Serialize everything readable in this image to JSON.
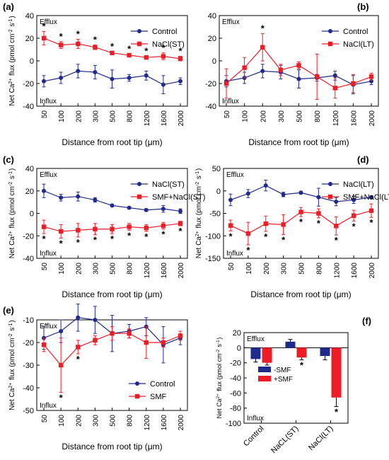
{
  "chart_data": [
    {
      "panel": "(a)",
      "type": "line",
      "x_categories": [
        "50",
        "100",
        "200",
        "300",
        "500",
        "800",
        "1200",
        "1600",
        "2000"
      ],
      "xlabel": "Distance from root tip  (μm)",
      "ylabel": "Net Ca2+ flux (pmol cm-2 s-1)",
      "ylim": [
        -40,
        40
      ],
      "yticks": [
        -40,
        -20,
        0,
        20,
        40
      ],
      "grid": false,
      "legend": "top-right",
      "annotations": {
        "top": "Efflux",
        "bottom": "Influx"
      },
      "series": [
        {
          "name": "Control",
          "color": "#1f2a8f",
          "marker": "circle",
          "values": [
            -18,
            -15,
            -9,
            -10,
            -16,
            -15,
            -13,
            -21,
            -18
          ],
          "errors": [
            5,
            5,
            6,
            6,
            8,
            3,
            4,
            8,
            3
          ]
        },
        {
          "name": "NaCl(ST)",
          "color": "#ee1c25",
          "marker": "square",
          "values": [
            20,
            14,
            15,
            12,
            7,
            5,
            3,
            4,
            2
          ],
          "errors": [
            6,
            3,
            4,
            2,
            1,
            1,
            1,
            3,
            2
          ]
        }
      ],
      "significance": [
        "*",
        "*",
        "*",
        "*",
        "*",
        "*",
        "*",
        "*",
        "*"
      ]
    },
    {
      "panel": "(b)",
      "type": "line",
      "x_categories": [
        "50",
        "100",
        "200",
        "300",
        "500",
        "800",
        "1200",
        "1600",
        "2000"
      ],
      "xlabel": "Distance from root tip  (μm)",
      "ylabel": "",
      "ylim": [
        -40,
        40
      ],
      "yticks": [
        -40,
        -20,
        0,
        20,
        40
      ],
      "grid": false,
      "legend": "top-right",
      "annotations": {
        "top": "Efflux",
        "bottom": "Influx"
      },
      "series": [
        {
          "name": "Control",
          "color": "#1f2a8f",
          "marker": "circle",
          "values": [
            -18,
            -15,
            -9,
            -10,
            -16,
            -15,
            -13,
            -21,
            -18
          ],
          "errors": [
            5,
            5,
            6,
            6,
            8,
            3,
            4,
            8,
            3
          ]
        },
        {
          "name": "NaCl(LT)",
          "color": "#ee1c25",
          "marker": "square",
          "values": [
            -20,
            -6,
            12,
            -8,
            -4,
            -14,
            -24,
            -20,
            -14
          ],
          "errors": [
            13,
            9,
            12,
            5,
            3,
            20,
            9,
            8,
            3
          ]
        }
      ],
      "significance": [
        "",
        "",
        "*",
        "",
        "",
        "",
        "",
        "",
        ""
      ]
    },
    {
      "panel": "(c)",
      "type": "line",
      "x_categories": [
        "50",
        "100",
        "200",
        "300",
        "500",
        "800",
        "1200",
        "1600",
        "2000"
      ],
      "xlabel": "Distance from root tip  (μm)",
      "ylabel": "Net Ca2+ flux (pmol cm-2 s-1)",
      "ylim": [
        -40,
        40
      ],
      "yticks": [
        -40,
        -20,
        0,
        20,
        40
      ],
      "grid": false,
      "legend": "top-right",
      "annotations": {
        "top": "Efflux",
        "bottom": "Influx"
      },
      "series": [
        {
          "name": "NaCl(ST)",
          "color": "#1f2a8f",
          "marker": "circle",
          "values": [
            20,
            14,
            15,
            12,
            7,
            5,
            3,
            4,
            2
          ],
          "errors": [
            6,
            3,
            4,
            2,
            1,
            1,
            1,
            3,
            2
          ]
        },
        {
          "name": "SMF+NaCl(ST)",
          "color": "#ee1c25",
          "marker": "square",
          "values": [
            -12,
            -16,
            -15,
            -14,
            -14,
            -12,
            -13,
            -11,
            -9
          ],
          "errors": [
            6,
            6,
            6,
            5,
            4,
            3,
            3,
            3,
            2
          ]
        }
      ],
      "significance": [
        "*",
        "*",
        "*",
        "*",
        "*",
        "*",
        "*",
        "*",
        "*"
      ]
    },
    {
      "panel": "(d)",
      "type": "line",
      "x_categories": [
        "50",
        "100",
        "200",
        "300",
        "500",
        "800",
        "1200",
        "1600",
        "2000"
      ],
      "xlabel": "Distance from root tip  (μm)",
      "ylabel": "Net Ca2+ flux (pmol cm-2 s-1)",
      "ylim": [
        -150,
        50
      ],
      "yticks": [
        -150,
        -100,
        -50,
        0,
        50
      ],
      "grid": false,
      "legend": "top-right",
      "annotations": {
        "top": "Efflux",
        "bottom": "Influx"
      },
      "series": [
        {
          "name": "NaCl(LT)",
          "color": "#1f2a8f",
          "marker": "circle",
          "values": [
            -20,
            -6,
            12,
            -8,
            -4,
            -14,
            -24,
            -20,
            -14
          ],
          "errors": [
            13,
            9,
            12,
            5,
            3,
            20,
            9,
            8,
            3
          ]
        },
        {
          "name": "SMF+NaCl(LT)",
          "color": "#ee1c25",
          "marker": "square",
          "values": [
            -77,
            -95,
            -73,
            -75,
            -47,
            -50,
            -78,
            -55,
            -44
          ],
          "errors": [
            12,
            25,
            17,
            22,
            10,
            10,
            20,
            12,
            15
          ]
        }
      ],
      "significance": [
        "*",
        "*",
        "*",
        "*",
        "*",
        "*",
        "*",
        "*",
        "*"
      ]
    },
    {
      "panel": "(e)",
      "type": "line",
      "x_categories": [
        "50",
        "100",
        "200",
        "300",
        "500",
        "800",
        "1200",
        "1600",
        "2000"
      ],
      "xlabel": "Distance from root tip  (μm)",
      "ylabel": "Net Ca2+ flux (pmol cm-2 s-1)",
      "ylim": [
        -50,
        -10
      ],
      "yticks": [
        -50,
        -40,
        -30,
        -20,
        -10
      ],
      "grid": false,
      "legend": "bottom-right",
      "annotations": {
        "top": "Efflux",
        "bottom": "Influx"
      },
      "series": [
        {
          "name": "Control",
          "color": "#1f2a8f",
          "marker": "circle",
          "values": [
            -18,
            -15,
            -9,
            -10,
            -16,
            -15,
            -13,
            -21,
            -18
          ],
          "errors": [
            5,
            5,
            6,
            6,
            8,
            3,
            4,
            8,
            3
          ]
        },
        {
          "name": "SMF",
          "color": "#ee1c25",
          "marker": "square",
          "values": [
            -21,
            -30,
            -22,
            -19,
            -16,
            -16,
            -20,
            -20,
            -17
          ],
          "errors": [
            3,
            12,
            3,
            2,
            3,
            2,
            7,
            2,
            2
          ]
        }
      ],
      "significance": [
        "",
        "*",
        "*",
        "",
        "",
        "",
        "",
        "",
        ""
      ]
    },
    {
      "panel": "(f)",
      "type": "bar",
      "categories": [
        "Control",
        "NaCL(ST)",
        "NaCl(LT)"
      ],
      "ylabel": "Net Ca2+ flux (pmol cm-2 s-1)",
      "ylim": [
        -100,
        20
      ],
      "yticks": [
        -100,
        -80,
        -60,
        -40,
        -20,
        0,
        20
      ],
      "grid": false,
      "legend": "center-left",
      "annotations": {
        "top": "Efflux",
        "bottom": "Influx"
      },
      "series": [
        {
          "name": "-SMF",
          "color": "#1f2a8f",
          "values": [
            -15,
            8,
            -11
          ],
          "errors": [
            4,
            3,
            5
          ]
        },
        {
          "name": "+SMF",
          "color": "#ee1c25",
          "values": [
            -20,
            -13,
            -66
          ],
          "errors": [
            3,
            3,
            12
          ]
        }
      ],
      "significance": [
        "",
        "*",
        "*"
      ]
    }
  ]
}
